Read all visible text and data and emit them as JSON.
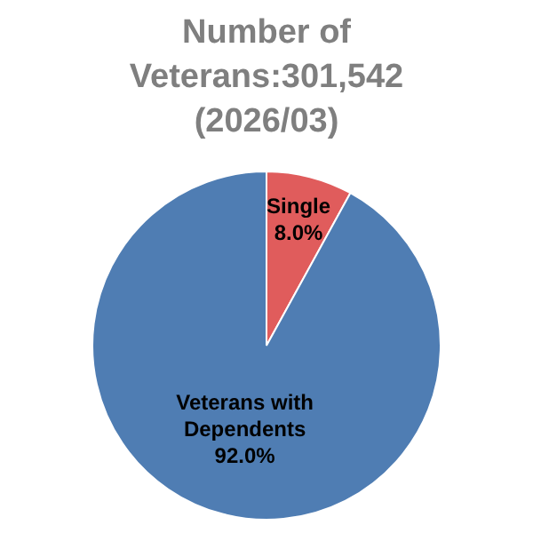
{
  "chart_data": {
    "type": "pie",
    "title": "Number of Veterans:301,542 (2026/03)",
    "categories": [
      "Single",
      "Veterans with Dependents"
    ],
    "values": [
      8.0,
      92.0
    ],
    "colors": [
      "#e05c5c",
      "#4f7db3"
    ],
    "value_labels": [
      "8.0%",
      "92.0%"
    ],
    "legend": false
  }
}
